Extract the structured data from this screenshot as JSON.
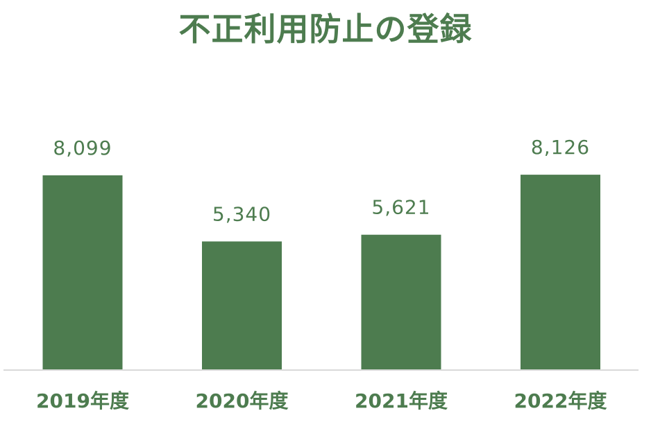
{
  "chart_data": {
    "type": "bar",
    "title": "不正利用防止の登録",
    "categories": [
      "2019年度",
      "2020年度",
      "2021年度",
      "2022年度"
    ],
    "values": [
      8099,
      5340,
      5621,
      8126
    ],
    "data_labels": [
      "8,099",
      "5,340",
      "5,621",
      "8,126"
    ],
    "xlabel": "",
    "ylabel": "",
    "ylim": [
      0,
      10000
    ],
    "grid": false,
    "legend": "none",
    "colors": {
      "bar": "#4d7c4f",
      "text": "#4d7c4f",
      "axis": "#d9d9d9"
    }
  }
}
